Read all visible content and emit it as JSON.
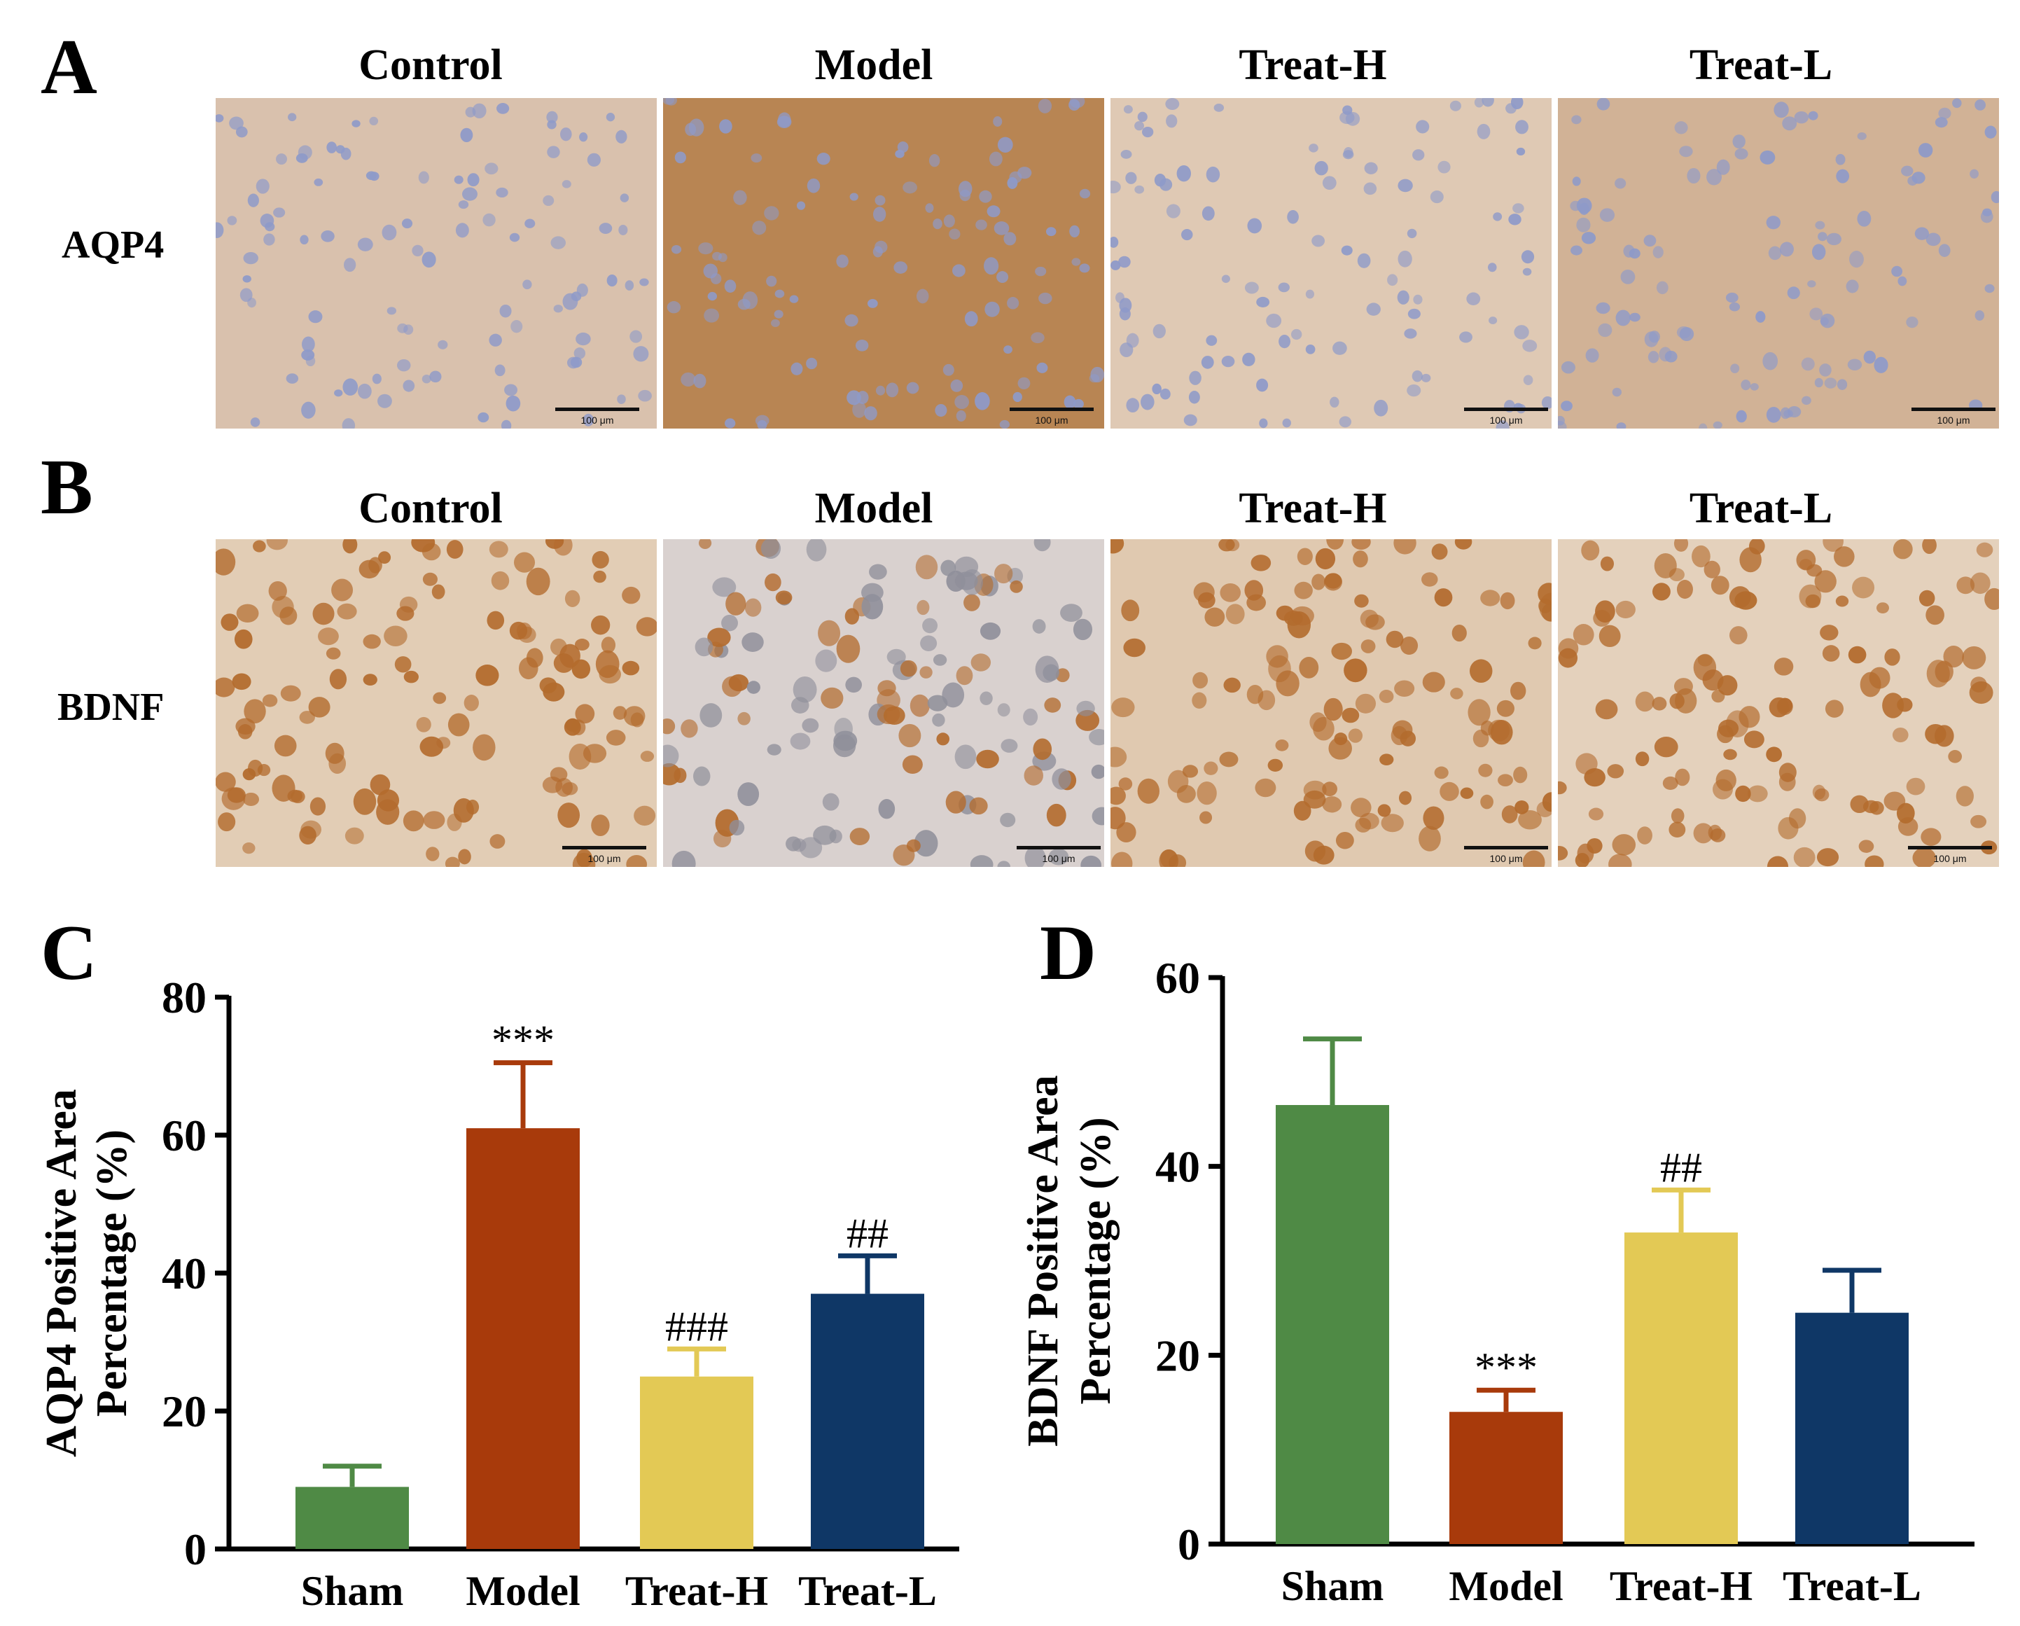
{
  "panels": {
    "a_letter": "A",
    "b_letter": "B",
    "c_letter": "C",
    "d_letter": "D"
  },
  "micrographs": {
    "columns": [
      "Control",
      "Model",
      "Treat-H",
      "Treat-L"
    ],
    "rows": [
      {
        "stain": "AQP4",
        "backgrounds": [
          "#d9c1ad",
          "#b88553",
          "#dfc9b4",
          "#d1b296"
        ],
        "nucleus_color": "#8e9ac9"
      },
      {
        "stain": "BDNF",
        "backgrounds": [
          "#e2cdb5",
          "#d9d1cf",
          "#e0c9b0",
          "#e4d1bc"
        ],
        "nucleus_color": "#b36b2d"
      }
    ],
    "scale_bar_label": "100 μm"
  },
  "chart_data": [
    {
      "type": "bar",
      "panel": "C",
      "categories": [
        "Sham",
        "Model",
        "Treat-H",
        "Treat-L"
      ],
      "values": [
        9,
        61,
        25,
        37
      ],
      "errors": [
        3,
        9.5,
        4,
        5.5
      ],
      "annotations": [
        "",
        "***",
        "###",
        "##"
      ],
      "colors": [
        "#4f8a45",
        "#a83a0b",
        "#e3c955",
        "#0f3766"
      ],
      "title": "",
      "xlabel": "",
      "ylabel_line1": "AQP4 Positive Area",
      "ylabel_line2": "Percentage (%)",
      "ylim": [
        0,
        80
      ],
      "yticks": [
        0,
        20,
        40,
        60,
        80
      ],
      "grid": false,
      "legend": "none"
    },
    {
      "type": "bar",
      "panel": "D",
      "categories": [
        "Sham",
        "Model",
        "Treat-H",
        "Treat-L"
      ],
      "values": [
        46.5,
        14,
        33,
        24.5
      ],
      "errors": [
        7,
        2.3,
        4.5,
        4.5
      ],
      "annotations": [
        "",
        "***",
        "##",
        ""
      ],
      "colors": [
        "#4f8a45",
        "#a83a0b",
        "#e3c955",
        "#0f3766"
      ],
      "title": "",
      "xlabel": "",
      "ylabel_line1": "BDNF Positive Area",
      "ylabel_line2": "Percentage (%)",
      "ylim": [
        0,
        60
      ],
      "yticks": [
        0,
        20,
        40,
        60
      ],
      "grid": false,
      "legend": "none"
    }
  ]
}
